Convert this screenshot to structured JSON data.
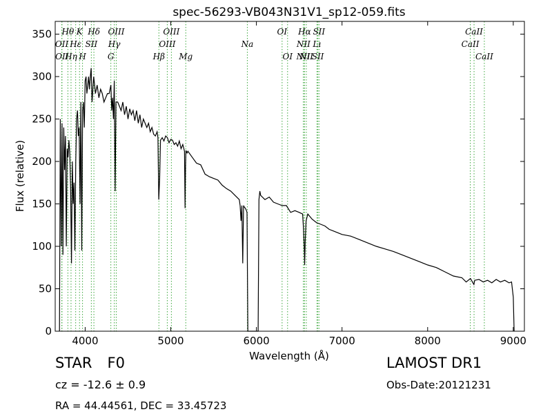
{
  "chart_data": {
    "type": "line",
    "title": "spec-56293-VB043N31V1_sp12-059.fits",
    "xlabel": "Wavelength (Å)",
    "ylabel": "Flux (relative)",
    "xlim": [
      3650,
      9130
    ],
    "ylim": [
      0,
      365
    ],
    "x_ticks": [
      4000,
      5000,
      6000,
      7000,
      8000,
      9000
    ],
    "y_ticks": [
      0,
      50,
      100,
      150,
      200,
      250,
      300,
      350
    ],
    "line_color": "#000000",
    "marker_color": "#3aa63a",
    "series": [
      {
        "x": [
          3700,
          3710,
          3720,
          3730,
          3740,
          3750,
          3760,
          3770,
          3780,
          3790,
          3800,
          3810,
          3820,
          3830,
          3840,
          3850,
          3860,
          3870,
          3880,
          3890,
          3900,
          3910,
          3920,
          3930,
          3940,
          3950,
          3960,
          3970,
          3980,
          3990,
          4000,
          4010,
          4020,
          4030,
          4040,
          4050,
          4060,
          4070,
          4080,
          4090,
          4100,
          4110,
          4120,
          4140,
          4160,
          4180,
          4200,
          4220,
          4240,
          4260,
          4280,
          4300,
          4310,
          4320,
          4330,
          4340,
          4350,
          4360,
          4380,
          4400,
          4420,
          4440,
          4460,
          4480,
          4500,
          4520,
          4540,
          4560,
          4580,
          4600,
          4620,
          4640,
          4660,
          4680,
          4700,
          4720,
          4740,
          4760,
          4780,
          4800,
          4820,
          4840,
          4850,
          4860,
          4870,
          4880,
          4900,
          4920,
          4940,
          4960,
          4980,
          5000,
          5020,
          5040,
          5060,
          5080,
          5100,
          5120,
          5140,
          5160,
          5167,
          5172,
          5177,
          5190,
          5200,
          5250,
          5300,
          5350,
          5400,
          5450,
          5500,
          5550,
          5600,
          5650,
          5700,
          5750,
          5800,
          5810,
          5820,
          5830,
          5840,
          5850,
          5860,
          5870,
          5880,
          5890,
          5900,
          5920,
          5930,
          5940,
          6020,
          6030,
          6040,
          6050,
          6100,
          6150,
          6200,
          6250,
          6300,
          6350,
          6400,
          6450,
          6500,
          6540,
          6550,
          6560,
          6563,
          6570,
          6580,
          6600,
          6650,
          6700,
          6750,
          6800,
          6850,
          6900,
          6950,
          7000,
          7100,
          7200,
          7300,
          7400,
          7500,
          7600,
          7700,
          7800,
          7900,
          8000,
          8100,
          8200,
          8300,
          8400,
          8450,
          8500,
          8540,
          8550,
          8600,
          8650,
          8700,
          8750,
          8800,
          8850,
          8900,
          8950,
          8980,
          9000,
          9010
        ],
        "y": [
          0,
          250,
          100,
          245,
          90,
          240,
          190,
          230,
          100,
          215,
          205,
          225,
          210,
          170,
          80,
          200,
          150,
          175,
          95,
          200,
          250,
          260,
          230,
          240,
          150,
          270,
          95,
          260,
          270,
          240,
          295,
          300,
          280,
          290,
          300,
          285,
          300,
          310,
          270,
          285,
          300,
          290,
          280,
          290,
          275,
          285,
          280,
          270,
          275,
          280,
          280,
          290,
          260,
          275,
          250,
          295,
          165,
          270,
          270,
          265,
          260,
          270,
          255,
          265,
          250,
          262,
          255,
          260,
          248,
          260,
          245,
          255,
          240,
          250,
          245,
          240,
          245,
          235,
          240,
          232,
          230,
          235,
          228,
          155,
          180,
          225,
          228,
          224,
          230,
          228,
          222,
          226,
          225,
          220,
          222,
          218,
          224,
          215,
          220,
          212,
          145,
          195,
          213,
          210,
          212,
          205,
          198,
          196,
          185,
          182,
          180,
          178,
          172,
          168,
          165,
          160,
          155,
          148,
          130,
          148,
          80,
          148,
          146,
          145,
          143,
          140,
          0,
          0,
          0,
          0,
          0,
          155,
          165,
          160,
          155,
          158,
          152,
          150,
          148,
          148,
          140,
          142,
          140,
          138,
          120,
          95,
          78,
          105,
          130,
          138,
          132,
          128,
          126,
          124,
          120,
          118,
          116,
          114,
          112,
          108,
          104,
          100,
          97,
          94,
          90,
          86,
          82,
          78,
          75,
          70,
          65,
          63,
          58,
          62,
          55,
          60,
          61,
          58,
          60,
          57,
          61,
          58,
          60,
          57,
          58,
          40,
          0
        ]
      }
    ],
    "annotations": [
      {
        "label": "OII",
        "x": 3727,
        "tier": 2
      },
      {
        "label": "OII",
        "x": 3729,
        "tier": 3
      },
      {
        "label": "Hθ",
        "x": 3798,
        "tier": 1
      },
      {
        "label": "Hη",
        "x": 3835,
        "tier": 3
      },
      {
        "label": "Hε",
        "x": 3889,
        "tier": 2
      },
      {
        "label": "K",
        "x": 3934,
        "tier": 1
      },
      {
        "label": "H",
        "x": 3969,
        "tier": 3
      },
      {
        "label": "SII",
        "x": 4072,
        "tier": 2
      },
      {
        "label": "Hδ",
        "x": 4102,
        "tier": 1
      },
      {
        "label": "G",
        "x": 4300,
        "tier": 3
      },
      {
        "label": "Hγ",
        "x": 4340,
        "tier": 2
      },
      {
        "label": "OIII",
        "x": 4363,
        "tier": 1
      },
      {
        "label": "Hβ",
        "x": 4861,
        "tier": 3
      },
      {
        "label": "OIII",
        "x": 4959,
        "tier": 2
      },
      {
        "label": "OIII",
        "x": 5007,
        "tier": 1
      },
      {
        "label": "Mg",
        "x": 5175,
        "tier": 3
      },
      {
        "label": "Na",
        "x": 5894,
        "tier": 2
      },
      {
        "label": "OI",
        "x": 6300,
        "tier": 1
      },
      {
        "label": "OI",
        "x": 6364,
        "tier": 3
      },
      {
        "label": "NII",
        "x": 6548,
        "tier": 3
      },
      {
        "label": "NII",
        "x": 6550,
        "tier": 2
      },
      {
        "label": "Hα",
        "x": 6563,
        "tier": 1
      },
      {
        "label": "NII",
        "x": 6583,
        "tier": 3
      },
      {
        "label": "Lı",
        "x": 6707,
        "tier": 2
      },
      {
        "label": "SII",
        "x": 6717,
        "tier": 3
      },
      {
        "label": "SII",
        "x": 6731,
        "tier": 1
      },
      {
        "label": "CaII",
        "x": 8498,
        "tier": 2
      },
      {
        "label": "CaII",
        "x": 8542,
        "tier": 1
      },
      {
        "label": "CaII",
        "x": 8662,
        "tier": 3
      }
    ]
  },
  "info": {
    "object_class": "STAR",
    "subclass": "F0",
    "redshift": "cz = -12.6 ± 0.9",
    "coords": "RA = 44.44561, DEC = 33.45723",
    "survey": "LAMOST DR1",
    "obs_date": "Obs-Date:20121231"
  }
}
